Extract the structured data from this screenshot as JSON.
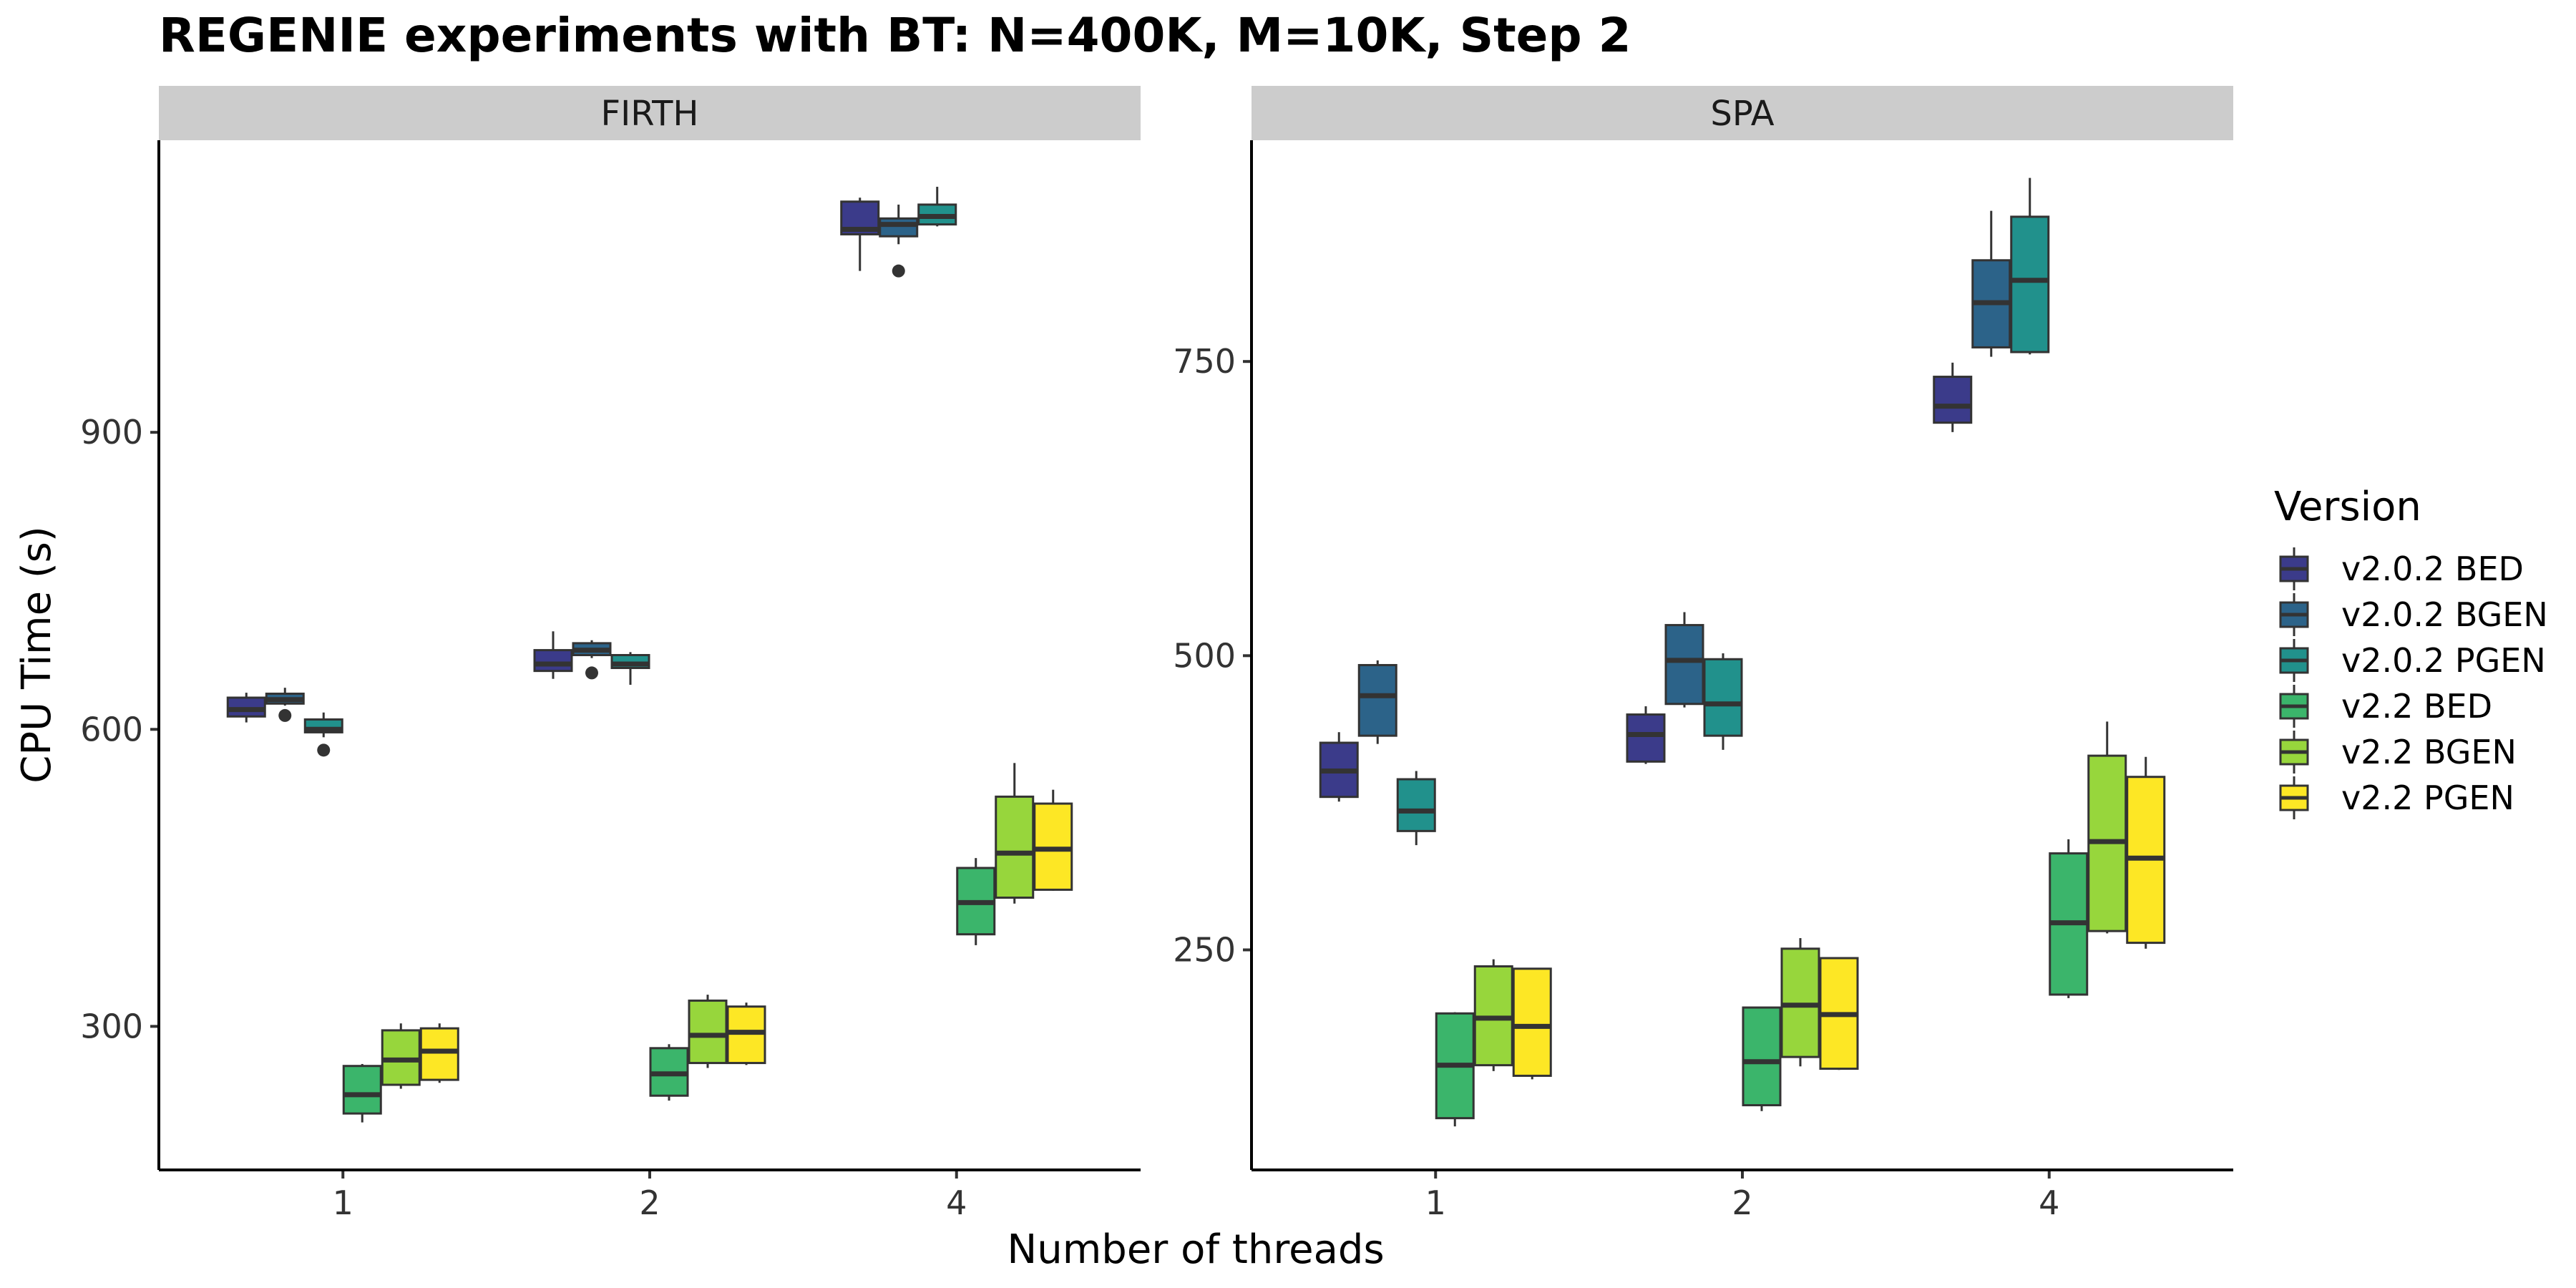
{
  "chart_data": {
    "type": "boxplot",
    "title": "REGENIE experiments with BT: N=400K, M=10K, Step 2",
    "xlabel": "Number of threads",
    "ylabel": "CPU Time (s)",
    "categories": [
      "1",
      "2",
      "4"
    ],
    "legend": {
      "title": "Version",
      "position": "right",
      "items": [
        {
          "name": "v2.0.2 BED",
          "color": "#3b3b8a"
        },
        {
          "name": "v2.0.2 BGEN",
          "color": "#2c6389"
        },
        {
          "name": "v2.0.2 PGEN",
          "color": "#21918c"
        },
        {
          "name": "v2.2 BED",
          "color": "#3bb56b"
        },
        {
          "name": "v2.2 BGEN",
          "color": "#97d63c"
        },
        {
          "name": "v2.2 PGEN",
          "color": "#fde725"
        }
      ]
    },
    "panels": [
      {
        "name": "FIRTH",
        "ylim": [
          155,
          1195
        ],
        "yticks": [
          300,
          600,
          900
        ],
        "series": [
          {
            "name": "v2.0.2 BED",
            "boxes": [
              {
                "x": "1",
                "min": 607,
                "q1": 613,
                "median": 620,
                "q3": 632,
                "max": 637,
                "outliers": []
              },
              {
                "x": "2",
                "min": 651,
                "q1": 659,
                "median": 666,
                "q3": 680,
                "max": 699,
                "outliers": []
              },
              {
                "x": "4",
                "min": 1063,
                "q1": 1100,
                "median": 1105,
                "q3": 1133,
                "max": 1137,
                "outliers": []
              }
            ]
          },
          {
            "name": "v2.0.2 BGEN",
            "boxes": [
              {
                "x": "1",
                "min": 624,
                "q1": 626,
                "median": 630,
                "q3": 636,
                "max": 642,
                "outliers": [
                  614
                ]
              },
              {
                "x": "2",
                "min": 672,
                "q1": 675,
                "median": 680,
                "q3": 687,
                "max": 690,
                "outliers": [
                  657
                ]
              },
              {
                "x": "4",
                "min": 1090,
                "q1": 1098,
                "median": 1110,
                "q3": 1116,
                "max": 1130,
                "outliers": [
                  1063
                ]
              }
            ]
          },
          {
            "name": "v2.0.2 PGEN",
            "boxes": [
              {
                "x": "1",
                "min": 592,
                "q1": 597,
                "median": 600,
                "q3": 610,
                "max": 617,
                "outliers": [
                  579
                ]
              },
              {
                "x": "2",
                "min": 645,
                "q1": 662,
                "median": 666,
                "q3": 675,
                "max": 678,
                "outliers": []
              },
              {
                "x": "4",
                "min": 1108,
                "q1": 1110,
                "median": 1118,
                "q3": 1130,
                "max": 1148,
                "outliers": []
              }
            ]
          },
          {
            "name": "v2.2 BED",
            "boxes": [
              {
                "x": "1",
                "min": 203,
                "q1": 212,
                "median": 231,
                "q3": 260,
                "max": 262,
                "outliers": []
              },
              {
                "x": "2",
                "min": 225,
                "q1": 230,
                "median": 252,
                "q3": 278,
                "max": 282,
                "outliers": []
              },
              {
                "x": "4",
                "min": 382,
                "q1": 393,
                "median": 425,
                "q3": 460,
                "max": 470,
                "outliers": []
              }
            ]
          },
          {
            "name": "v2.2 BGEN",
            "boxes": [
              {
                "x": "1",
                "min": 237,
                "q1": 241,
                "median": 266,
                "q3": 296,
                "max": 303,
                "outliers": []
              },
              {
                "x": "2",
                "min": 258,
                "q1": 263,
                "median": 291,
                "q3": 326,
                "max": 332,
                "outliers": []
              },
              {
                "x": "4",
                "min": 424,
                "q1": 430,
                "median": 475,
                "q3": 532,
                "max": 566,
                "outliers": []
              }
            ]
          },
          {
            "name": "v2.2 PGEN",
            "boxes": [
              {
                "x": "1",
                "min": 243,
                "q1": 246,
                "median": 275,
                "q3": 298,
                "max": 303,
                "outliers": []
              },
              {
                "x": "2",
                "min": 261,
                "q1": 263,
                "median": 294,
                "q3": 320,
                "max": 324,
                "outliers": []
              },
              {
                "x": "4",
                "min": 437,
                "q1": 438,
                "median": 479,
                "q3": 525,
                "max": 539,
                "outliers": []
              }
            ]
          }
        ]
      },
      {
        "name": "SPA",
        "ylim": [
          63,
          938
        ],
        "yticks": [
          250,
          500,
          750
        ],
        "series": [
          {
            "name": "v2.0.2 BED",
            "boxes": [
              {
                "x": "1",
                "min": 376,
                "q1": 380,
                "median": 402,
                "q3": 426,
                "max": 435,
                "outliers": []
              },
              {
                "x": "2",
                "min": 408,
                "q1": 410,
                "median": 433,
                "q3": 450,
                "max": 457,
                "outliers": []
              },
              {
                "x": "4",
                "min": 690,
                "q1": 698,
                "median": 712,
                "q3": 737,
                "max": 749,
                "outliers": []
              }
            ]
          },
          {
            "name": "v2.0.2 BGEN",
            "boxes": [
              {
                "x": "1",
                "min": 425,
                "q1": 432,
                "median": 466,
                "q3": 492,
                "max": 496,
                "outliers": []
              },
              {
                "x": "2",
                "min": 456,
                "q1": 459,
                "median": 496,
                "q3": 526,
                "max": 537,
                "outliers": []
              },
              {
                "x": "4",
                "min": 754,
                "q1": 762,
                "median": 800,
                "q3": 836,
                "max": 878,
                "outliers": []
              }
            ]
          },
          {
            "name": "v2.0.2 PGEN",
            "boxes": [
              {
                "x": "1",
                "min": 339,
                "q1": 351,
                "median": 368,
                "q3": 395,
                "max": 402,
                "outliers": []
              },
              {
                "x": "2",
                "min": 420,
                "q1": 432,
                "median": 459,
                "q3": 497,
                "max": 502,
                "outliers": []
              },
              {
                "x": "4",
                "min": 756,
                "q1": 758,
                "median": 819,
                "q3": 873,
                "max": 906,
                "outliers": []
              }
            ]
          },
          {
            "name": "v2.2 BED",
            "boxes": [
              {
                "x": "1",
                "min": 100,
                "q1": 107,
                "median": 152,
                "q3": 196,
                "max": 197,
                "outliers": []
              },
              {
                "x": "2",
                "min": 113,
                "q1": 118,
                "median": 155,
                "q3": 201,
                "max": 201,
                "outliers": []
              },
              {
                "x": "4",
                "min": 209,
                "q1": 212,
                "median": 273,
                "q3": 332,
                "max": 344,
                "outliers": []
              }
            ]
          },
          {
            "name": "v2.2 BGEN",
            "boxes": [
              {
                "x": "1",
                "min": 147,
                "q1": 152,
                "median": 192,
                "q3": 236,
                "max": 242,
                "outliers": []
              },
              {
                "x": "2",
                "min": 151,
                "q1": 159,
                "median": 203,
                "q3": 251,
                "max": 260,
                "outliers": []
              },
              {
                "x": "4",
                "min": 264,
                "q1": 266,
                "median": 342,
                "q3": 415,
                "max": 444,
                "outliers": []
              }
            ]
          },
          {
            "name": "v2.2 PGEN",
            "boxes": [
              {
                "x": "1",
                "min": 140,
                "q1": 143,
                "median": 185,
                "q3": 234,
                "max": 234,
                "outliers": []
              },
              {
                "x": "2",
                "min": 148,
                "q1": 149,
                "median": 195,
                "q3": 243,
                "max": 243,
                "outliers": []
              },
              {
                "x": "4",
                "min": 251,
                "q1": 256,
                "median": 328,
                "q3": 397,
                "max": 414,
                "outliers": []
              }
            ]
          }
        ]
      }
    ]
  }
}
